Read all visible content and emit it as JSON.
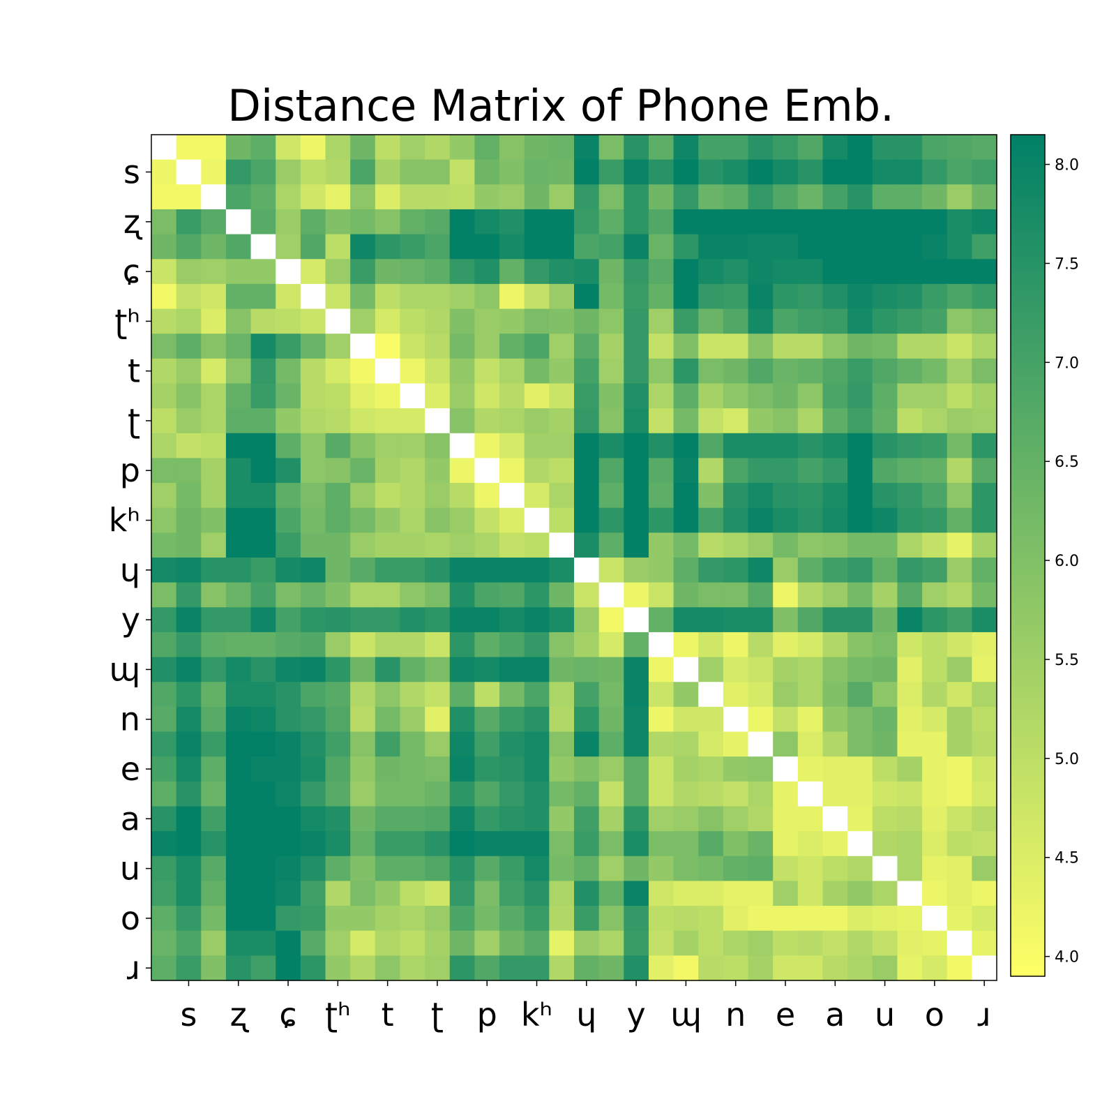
{
  "chart_data": {
    "type": "heatmap",
    "title": "Distance Matrix of Phone Emb.",
    "tick_labels": [
      "s",
      "ʐ",
      "ɕ",
      "ʈʰ",
      "t",
      "ʈ",
      "p",
      "kʰ",
      "ɥ",
      "y",
      "ɰ",
      "n",
      "e",
      "a",
      "u",
      "o",
      "ɹ"
    ],
    "tick_rows": [
      1,
      3,
      5,
      7,
      9,
      11,
      13,
      15,
      17,
      19,
      21,
      23,
      25,
      27,
      29,
      31,
      33
    ],
    "matrix_size": 34,
    "vmin": 3.9,
    "vmax": 8.15,
    "colorbar": {
      "ticks": [
        4.0,
        4.5,
        5.0,
        5.5,
        6.0,
        6.5,
        7.0,
        7.5,
        8.0
      ],
      "tick_labels": [
        "4.0",
        "4.5",
        "5.0",
        "5.5",
        "6.0",
        "6.5",
        "7.0",
        "7.5",
        "8.0"
      ]
    },
    "colormap": "summer_r",
    "colormap_low": "#ffff66",
    "colormap_high": "#008066",
    "diagonal": "white (blank)",
    "rows": [
      [
        null,
        4.1,
        4.1,
        6.3,
        6.6,
        4.7,
        4.2,
        5.3,
        6.3,
        5.0,
        5.5,
        5.2,
        5.7,
        6.5,
        5.9,
        6.3,
        6.4,
        8.0,
        6.1,
        7.5,
        6.6,
        7.9,
        7.0,
        7.0,
        7.5,
        7.2,
        6.8,
        7.8,
        8.1,
        7.5,
        7.5,
        6.9,
        6.8,
        6.7
      ],
      [
        4.2,
        null,
        4.2,
        7.3,
        6.9,
        5.6,
        5.0,
        5.2,
        6.9,
        5.4,
        5.9,
        5.9,
        4.9,
        6.3,
        6.0,
        6.4,
        6.3,
        8.1,
        7.2,
        8.0,
        7.5,
        8.1,
        7.5,
        7.7,
        8.1,
        7.8,
        7.5,
        8.1,
        8.1,
        7.8,
        7.8,
        7.3,
        6.9,
        7.1
      ],
      [
        4.1,
        4.1,
        null,
        6.9,
        6.6,
        5.3,
        4.7,
        4.3,
        5.8,
        4.5,
        5.1,
        5.1,
        5.0,
        5.7,
        5.6,
        6.3,
        5.6,
        7.3,
        6.1,
        7.4,
        6.3,
        7.3,
        6.4,
        6.6,
        7.3,
        6.8,
        6.4,
        7.0,
        7.5,
        6.6,
        6.6,
        6.3,
        5.6,
        6.3
      ],
      [
        6.1,
        7.2,
        6.7,
        null,
        6.7,
        5.6,
        6.6,
        6.0,
        6.2,
        5.9,
        6.5,
        6.7,
        8.1,
        7.8,
        7.6,
        8.1,
        8.1,
        7.2,
        6.6,
        7.4,
        6.8,
        8.1,
        8.1,
        8.1,
        8.1,
        8.1,
        8.1,
        8.1,
        8.1,
        8.1,
        8.1,
        8.1,
        7.7,
        7.9
      ],
      [
        6.3,
        6.8,
        6.3,
        6.8,
        null,
        5.5,
        6.8,
        5.0,
        7.9,
        7.4,
        7.2,
        6.9,
        8.1,
        8.1,
        7.8,
        8.1,
        8.1,
        6.9,
        7.0,
        8.0,
        6.4,
        7.4,
        8.0,
        8.0,
        7.9,
        7.9,
        8.1,
        8.1,
        8.1,
        8.1,
        8.1,
        8.0,
        7.7,
        7.1
      ],
      [
        4.8,
        5.6,
        5.5,
        5.7,
        5.7,
        null,
        4.6,
        5.6,
        7.2,
        6.3,
        6.4,
        6.6,
        7.3,
        7.6,
        6.5,
        7.3,
        7.6,
        7.7,
        6.3,
        7.3,
        6.7,
        8.1,
        7.8,
        7.6,
        7.9,
        7.8,
        7.8,
        8.1,
        8.1,
        8.1,
        8.1,
        8.1,
        8.1,
        8.1
      ],
      [
        4.1,
        4.9,
        4.7,
        6.5,
        6.5,
        4.7,
        null,
        4.8,
        6.2,
        5.0,
        5.3,
        5.3,
        5.5,
        5.8,
        4.2,
        4.9,
        5.6,
        8.1,
        6.2,
        7.2,
        6.5,
        8.1,
        7.3,
        7.2,
        8.0,
        7.4,
        7.3,
        7.6,
        7.9,
        7.7,
        7.6,
        7.2,
        6.9,
        7.2
      ],
      [
        5.1,
        5.3,
        4.5,
        5.9,
        5.1,
        5.0,
        4.8,
        null,
        5.5,
        4.6,
        5.0,
        5.2,
        6.0,
        5.6,
        5.7,
        6.1,
        6.0,
        6.3,
        5.8,
        7.3,
        5.5,
        7.2,
        6.4,
        6.8,
        7.8,
        6.9,
        7.1,
        7.2,
        7.8,
        7.4,
        7.2,
        7.0,
        5.8,
        6.1
      ],
      [
        6.1,
        6.6,
        5.9,
        6.4,
        7.8,
        7.2,
        6.4,
        5.5,
        null,
        4.0,
        4.8,
        5.1,
        6.2,
        5.6,
        6.5,
        6.9,
        5.5,
        6.7,
        5.4,
        7.3,
        4.9,
        6.0,
        4.8,
        4.8,
        5.9,
        5.1,
        5.1,
        5.8,
        6.3,
        6.2,
        5.2,
        5.2,
        4.8,
        5.3
      ],
      [
        5.2,
        5.6,
        4.6,
        5.8,
        7.3,
        6.2,
        5.1,
        4.6,
        4.1,
        null,
        4.2,
        4.8,
        5.7,
        4.9,
        5.3,
        6.2,
        5.7,
        7.0,
        5.5,
        7.3,
        5.8,
        7.4,
        6.1,
        6.3,
        6.8,
        6.4,
        6.5,
        6.8,
        7.2,
        6.8,
        6.5,
        6.2,
        5.5,
        6.1
      ],
      [
        5.4,
        5.9,
        5.3,
        6.5,
        7.2,
        6.4,
        5.1,
        5.0,
        4.4,
        4.2,
        null,
        4.5,
        5.6,
        4.7,
        5.1,
        4.4,
        4.8,
        7.2,
        6.0,
        7.6,
        5.3,
        6.6,
        5.4,
        5.8,
        6.1,
        6.3,
        5.8,
        6.9,
        7.3,
        6.6,
        5.5,
        5.5,
        5.0,
        5.4
      ],
      [
        5.0,
        5.6,
        5.3,
        6.6,
        6.6,
        5.7,
        5.2,
        5.1,
        4.7,
        4.6,
        4.6,
        null,
        5.9,
        5.2,
        5.3,
        5.6,
        5.4,
        7.3,
        5.9,
        7.7,
        4.9,
        6.2,
        4.9,
        4.6,
        5.7,
        5.9,
        5.3,
        6.6,
        7.1,
        6.5,
        5.0,
        5.3,
        5.6,
        5.5
      ],
      [
        5.3,
        4.9,
        5.0,
        8.1,
        8.1,
        6.6,
        5.8,
        6.7,
        5.9,
        5.5,
        5.5,
        5.9,
        null,
        4.2,
        4.6,
        5.5,
        5.5,
        8.1,
        7.7,
        8.1,
        7.6,
        8.1,
        6.8,
        7.7,
        7.7,
        7.7,
        7.5,
        7.7,
        8.1,
        7.5,
        7.3,
        7.2,
        6.2,
        7.4
      ],
      [
        6.1,
        6.1,
        5.4,
        7.7,
        8.1,
        7.6,
        5.8,
        5.9,
        6.4,
        5.4,
        5.2,
        5.7,
        4.2,
        null,
        4.2,
        5.2,
        5.0,
        8.1,
        6.8,
        8.1,
        6.7,
        8.0,
        5.2,
        6.9,
        7.3,
        7.3,
        7.0,
        7.3,
        8.1,
        6.8,
        6.6,
        6.5,
        5.2,
        6.7
      ],
      [
        5.5,
        6.2,
        5.4,
        7.7,
        7.7,
        6.6,
        6.1,
        6.6,
        5.6,
        5.0,
        5.2,
        5.6,
        5.1,
        4.2,
        null,
        4.6,
        5.3,
        8.1,
        6.6,
        8.1,
        6.6,
        8.1,
        6.0,
        7.5,
        7.8,
        7.5,
        7.4,
        7.7,
        8.1,
        7.5,
        7.3,
        6.9,
        5.8,
        7.4
      ],
      [
        5.8,
        6.3,
        6.0,
        8.1,
        8.1,
        6.9,
        6.2,
        6.6,
        6.2,
        5.7,
        5.3,
        5.9,
        5.6,
        4.9,
        4.5,
        null,
        5.0,
        8.1,
        7.4,
        8.1,
        7.4,
        8.1,
        7.0,
        7.6,
        8.0,
        7.7,
        7.5,
        7.8,
        8.1,
        7.9,
        7.4,
        7.3,
        6.5,
        7.4
      ],
      [
        6.2,
        6.3,
        5.5,
        8.1,
        8.1,
        7.2,
        6.3,
        6.3,
        5.6,
        5.4,
        5.4,
        5.3,
        5.5,
        5.3,
        4.9,
        5.0,
        null,
        7.7,
        6.6,
        8.1,
        5.7,
        6.2,
        5.1,
        5.3,
        5.6,
        6.2,
        5.8,
        5.9,
        6.2,
        6.2,
        5.3,
        4.9,
        4.3,
        5.4
      ],
      [
        7.8,
        7.9,
        7.5,
        7.5,
        7.2,
        7.8,
        7.9,
        6.3,
        6.7,
        7.2,
        7.2,
        7.5,
        8.0,
        8.0,
        8.0,
        8.0,
        7.7,
        null,
        4.8,
        5.6,
        5.7,
        6.6,
        7.3,
        7.4,
        7.9,
        5.6,
        6.6,
        7.1,
        7.3,
        6.5,
        7.3,
        7.1,
        5.6,
        6.5
      ],
      [
        6.1,
        7.3,
        5.9,
        6.4,
        7.0,
        6.1,
        6.4,
        6.0,
        5.3,
        5.3,
        5.8,
        6.1,
        7.6,
        6.9,
        6.8,
        7.4,
        6.3,
        4.8,
        null,
        4.2,
        4.8,
        6.3,
        6.1,
        6.1,
        6.7,
        4.2,
        5.2,
        5.6,
        6.2,
        5.4,
        6.7,
        5.5,
        5.2,
        6.2
      ],
      [
        7.3,
        8.0,
        7.3,
        7.3,
        7.9,
        7.0,
        7.4,
        7.5,
        7.3,
        7.3,
        7.6,
        7.4,
        8.0,
        8.0,
        7.8,
        8.0,
        7.7,
        5.6,
        4.1,
        null,
        6.5,
        7.8,
        7.8,
        7.7,
        7.7,
        6.0,
        6.8,
        7.5,
        7.5,
        6.3,
        8.0,
        7.4,
        7.1,
        7.7
      ],
      [
        6.8,
        7.3,
        6.6,
        6.5,
        6.5,
        6.7,
        6.8,
        5.6,
        4.8,
        5.2,
        5.2,
        4.8,
        7.4,
        6.6,
        6.9,
        7.3,
        5.9,
        5.4,
        4.6,
        6.5,
        null,
        4.2,
        4.7,
        4.2,
        5.1,
        4.4,
        4.6,
        5.2,
        5.9,
        6.1,
        4.7,
        5.0,
        4.7,
        4.4
      ],
      [
        7.6,
        8.0,
        7.3,
        7.8,
        7.5,
        7.9,
        8.0,
        7.4,
        6.3,
        7.5,
        6.5,
        6.1,
        7.9,
        7.8,
        8.0,
        8.0,
        6.3,
        6.4,
        6.3,
        8.0,
        4.2,
        null,
        5.5,
        4.6,
        4.8,
        5.4,
        5.3,
        5.9,
        6.2,
        6.3,
        4.4,
        5.0,
        5.6,
        4.3
      ],
      [
        6.8,
        7.4,
        6.5,
        7.7,
        7.7,
        7.5,
        6.9,
        6.7,
        5.2,
        5.8,
        5.2,
        4.9,
        6.6,
        5.0,
        6.2,
        6.9,
        5.3,
        7.0,
        6.2,
        8.0,
        4.8,
        5.7,
        null,
        4.4,
        4.6,
        5.6,
        5.3,
        6.0,
        6.7,
        5.8,
        4.5,
        5.2,
        4.7,
        5.3
      ],
      [
        6.7,
        7.8,
        6.7,
        8.0,
        7.9,
        7.5,
        7.3,
        6.8,
        5.1,
        6.2,
        5.6,
        4.4,
        7.6,
        6.7,
        7.2,
        7.5,
        5.2,
        7.4,
        6.3,
        7.9,
        4.2,
        4.7,
        4.7,
        null,
        4.2,
        4.9,
        4.3,
        5.7,
        6.1,
        6.4,
        4.4,
        4.6,
        5.4,
        5.0
      ],
      [
        7.3,
        8.0,
        7.2,
        8.1,
        8.1,
        8.0,
        7.6,
        7.1,
        5.9,
        7.1,
        6.2,
        5.6,
        7.9,
        7.1,
        7.6,
        7.8,
        5.9,
        8.0,
        6.6,
        7.9,
        5.2,
        5.3,
        4.6,
        4.3,
        null,
        5.8,
        4.5,
        5.2,
        6.1,
        6.3,
        4.3,
        4.3,
        5.4,
        5.1
      ],
      [
        7.0,
        7.8,
        6.6,
        8.1,
        8.0,
        8.0,
        7.7,
        6.8,
        5.7,
        6.3,
        6.2,
        6.1,
        8.0,
        7.4,
        7.5,
        7.8,
        5.7,
        6.0,
        5.6,
        6.6,
        4.8,
        5.4,
        5.3,
        5.7,
        5.8,
        null,
        4.3,
        4.4,
        4.4,
        5.0,
        5.4,
        4.3,
        4.2,
        4.7
      ],
      [
        6.6,
        7.5,
        6.4,
        8.1,
        8.1,
        7.9,
        7.3,
        6.7,
        5.6,
        6.2,
        6.2,
        6.4,
        7.4,
        6.8,
        7.3,
        7.6,
        6.2,
        6.5,
        4.9,
        6.6,
        4.8,
        5.2,
        5.1,
        4.9,
        5.3,
        4.3,
        null,
        4.4,
        4.4,
        4.7,
        4.8,
        4.3,
        4.2,
        4.6
      ],
      [
        7.5,
        8.1,
        7.1,
        8.1,
        8.1,
        8.1,
        7.8,
        7.6,
        6.3,
        6.7,
        6.7,
        6.8,
        7.9,
        7.3,
        7.5,
        7.6,
        5.7,
        7.1,
        5.4,
        7.4,
        5.5,
        5.6,
        5.9,
        5.5,
        5.2,
        4.3,
        4.3,
        null,
        4.3,
        5.0,
        5.1,
        4.4,
        4.8,
        5.1
      ],
      [
        8.0,
        8.1,
        7.5,
        8.1,
        8.1,
        8.1,
        8.0,
        7.7,
        6.5,
        7.2,
        7.2,
        7.5,
        8.1,
        8.0,
        8.0,
        8.0,
        6.1,
        7.2,
        6.1,
        7.7,
        6.1,
        6.1,
        6.7,
        6.0,
        6.4,
        4.3,
        4.5,
        4.3,
        null,
        5.2,
        5.3,
        4.5,
        5.0,
        4.9
      ],
      [
        7.2,
        7.7,
        6.7,
        8.1,
        8.1,
        8.0,
        7.6,
        6.6,
        6.0,
        6.6,
        6.6,
        6.8,
        7.5,
        6.7,
        7.2,
        7.8,
        6.2,
        6.5,
        5.5,
        6.3,
        5.7,
        6.1,
        6.2,
        6.5,
        6.6,
        4.9,
        4.7,
        5.0,
        5.2,
        null,
        5.3,
        4.3,
        4.4,
        5.6
      ],
      [
        7.1,
        7.7,
        6.5,
        8.1,
        8.1,
        7.9,
        7.1,
        5.2,
        6.1,
        5.7,
        5.0,
        4.7,
        7.3,
        6.1,
        7.1,
        7.5,
        5.3,
        7.6,
        6.5,
        8.0,
        4.7,
        4.5,
        4.5,
        4.3,
        4.3,
        5.5,
        4.7,
        5.4,
        5.7,
        5.3,
        null,
        4.2,
        4.4,
        4.2
      ],
      [
        6.6,
        7.3,
        6.2,
        8.1,
        8.1,
        7.3,
        7.2,
        5.7,
        5.7,
        5.4,
        5.3,
        5.6,
        6.9,
        6.2,
        6.7,
        7.2,
        5.2,
        7.2,
        5.9,
        7.3,
        5.0,
        5.1,
        5.0,
        4.4,
        4.2,
        4.2,
        4.2,
        4.2,
        4.5,
        4.4,
        4.3,
        null,
        4.3,
        4.6
      ],
      [
        6.4,
        6.9,
        5.6,
        7.7,
        7.7,
        8.1,
        6.7,
        5.5,
        4.6,
        5.2,
        5.0,
        5.4,
        6.3,
        5.5,
        6.3,
        6.7,
        4.3,
        5.6,
        5.3,
        7.2,
        4.9,
        5.4,
        5.0,
        5.3,
        5.5,
        5.0,
        5.1,
        4.9,
        5.2,
        4.9,
        4.4,
        4.3,
        null,
        4.3
      ],
      [
        6.6,
        7.2,
        6.0,
        7.5,
        7.1,
        8.1,
        7.4,
        5.7,
        5.2,
        5.8,
        5.3,
        5.5,
        7.4,
        6.8,
        7.3,
        7.3,
        5.2,
        6.5,
        6.3,
        7.6,
        4.4,
        4.1,
        5.1,
        5.0,
        5.4,
        4.7,
        4.7,
        5.1,
        5.3,
        5.6,
        4.3,
        4.6,
        4.1,
        null
      ]
    ]
  }
}
